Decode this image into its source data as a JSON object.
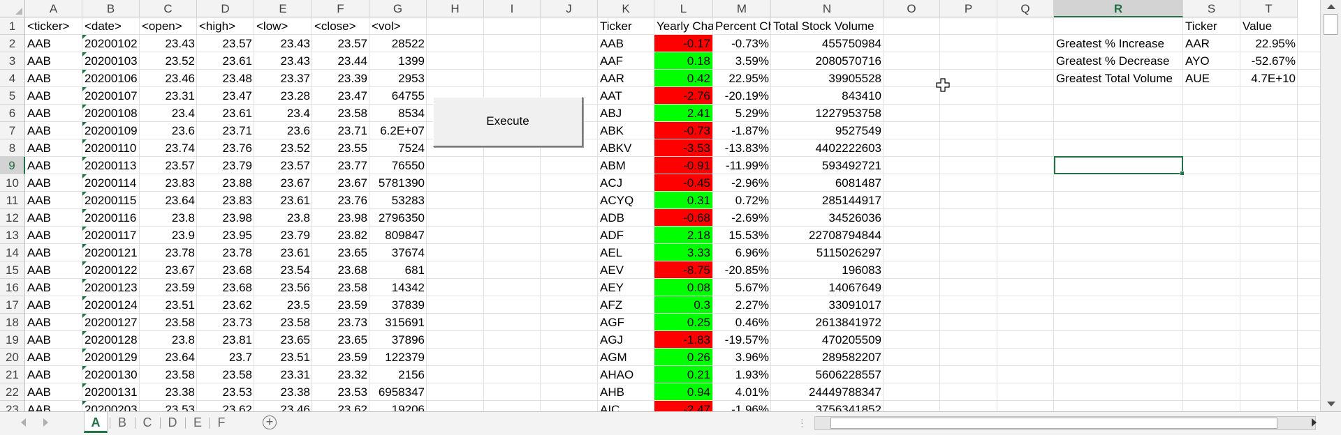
{
  "columns": [
    "A",
    "B",
    "C",
    "D",
    "E",
    "F",
    "G",
    "H",
    "I",
    "J",
    "K",
    "L",
    "M",
    "N",
    "O",
    "P",
    "Q",
    "R",
    "S",
    "T"
  ],
  "selected_column": "R",
  "selected_row": "9",
  "row_numbers": [
    "1",
    "2",
    "3",
    "4",
    "5",
    "6",
    "7",
    "8",
    "9",
    "10",
    "11",
    "12",
    "13",
    "14",
    "15",
    "16",
    "17",
    "18",
    "19",
    "20",
    "21",
    "22",
    "23"
  ],
  "raw_headers": [
    "<ticker>",
    "<date>",
    "<open>",
    "<high>",
    "<low>",
    "<close>",
    "<vol>"
  ],
  "raw_rows": [
    [
      "AAB",
      "20200102",
      "23.43",
      "23.57",
      "23.43",
      "23.57",
      "28522"
    ],
    [
      "AAB",
      "20200103",
      "23.52",
      "23.61",
      "23.43",
      "23.44",
      "1399"
    ],
    [
      "AAB",
      "20200106",
      "23.46",
      "23.48",
      "23.37",
      "23.39",
      "2953"
    ],
    [
      "AAB",
      "20200107",
      "23.31",
      "23.47",
      "23.28",
      "23.47",
      "64755"
    ],
    [
      "AAB",
      "20200108",
      "23.4",
      "23.61",
      "23.4",
      "23.58",
      "8534"
    ],
    [
      "AAB",
      "20200109",
      "23.6",
      "23.71",
      "23.6",
      "23.71",
      "6.2E+07"
    ],
    [
      "AAB",
      "20200110",
      "23.74",
      "23.76",
      "23.52",
      "23.55",
      "7524"
    ],
    [
      "AAB",
      "20200113",
      "23.57",
      "23.79",
      "23.57",
      "23.77",
      "76550"
    ],
    [
      "AAB",
      "20200114",
      "23.83",
      "23.88",
      "23.67",
      "23.67",
      "5781390"
    ],
    [
      "AAB",
      "20200115",
      "23.64",
      "23.83",
      "23.61",
      "23.76",
      "53283"
    ],
    [
      "AAB",
      "20200116",
      "23.8",
      "23.98",
      "23.8",
      "23.98",
      "2796350"
    ],
    [
      "AAB",
      "20200117",
      "23.9",
      "23.95",
      "23.79",
      "23.82",
      "809847"
    ],
    [
      "AAB",
      "20200121",
      "23.78",
      "23.78",
      "23.61",
      "23.65",
      "37674"
    ],
    [
      "AAB",
      "20200122",
      "23.67",
      "23.68",
      "23.54",
      "23.68",
      "681"
    ],
    [
      "AAB",
      "20200123",
      "23.59",
      "23.68",
      "23.56",
      "23.58",
      "14342"
    ],
    [
      "AAB",
      "20200124",
      "23.51",
      "23.62",
      "23.5",
      "23.59",
      "37839"
    ],
    [
      "AAB",
      "20200127",
      "23.58",
      "23.73",
      "23.58",
      "23.73",
      "315691"
    ],
    [
      "AAB",
      "20200128",
      "23.8",
      "23.81",
      "23.65",
      "23.65",
      "37896"
    ],
    [
      "AAB",
      "20200129",
      "23.64",
      "23.7",
      "23.51",
      "23.59",
      "122379"
    ],
    [
      "AAB",
      "20200130",
      "23.58",
      "23.58",
      "23.31",
      "23.32",
      "2156"
    ],
    [
      "AAB",
      "20200131",
      "23.38",
      "23.53",
      "23.38",
      "23.53",
      "6958347"
    ],
    [
      "AAB",
      "20200203",
      "23.53",
      "23.62",
      "23.46",
      "23.62",
      "19206"
    ]
  ],
  "summary_headers": [
    "Ticker",
    "Yearly Cha",
    "Percent Ch",
    "Total Stock Volume"
  ],
  "summary_rows": [
    {
      "ticker": "AAB",
      "change": "-0.17",
      "percent": "-0.73%",
      "volume": "455750984",
      "status": "neg"
    },
    {
      "ticker": "AAF",
      "change": "0.18",
      "percent": "3.59%",
      "volume": "2080570716",
      "status": "pos"
    },
    {
      "ticker": "AAR",
      "change": "0.42",
      "percent": "22.95%",
      "volume": "39905528",
      "status": "pos"
    },
    {
      "ticker": "AAT",
      "change": "-2.76",
      "percent": "-20.19%",
      "volume": "843410",
      "status": "neg"
    },
    {
      "ticker": "ABJ",
      "change": "2.41",
      "percent": "5.29%",
      "volume": "1227953758",
      "status": "pos"
    },
    {
      "ticker": "ABK",
      "change": "-0.73",
      "percent": "-1.87%",
      "volume": "9527549",
      "status": "neg"
    },
    {
      "ticker": "ABKV",
      "change": "-3.53",
      "percent": "-13.83%",
      "volume": "4402222603",
      "status": "neg"
    },
    {
      "ticker": "ABM",
      "change": "-0.91",
      "percent": "-11.99%",
      "volume": "593492721",
      "status": "neg"
    },
    {
      "ticker": "ACJ",
      "change": "-0.45",
      "percent": "-2.96%",
      "volume": "6081487",
      "status": "neg"
    },
    {
      "ticker": "ACYQ",
      "change": "0.31",
      "percent": "0.72%",
      "volume": "285144917",
      "status": "pos"
    },
    {
      "ticker": "ADB",
      "change": "-0.68",
      "percent": "-2.69%",
      "volume": "34526036",
      "status": "neg"
    },
    {
      "ticker": "ADF",
      "change": "2.18",
      "percent": "15.53%",
      "volume": "22708794844",
      "status": "pos"
    },
    {
      "ticker": "AEL",
      "change": "3.33",
      "percent": "6.96%",
      "volume": "5115026297",
      "status": "pos"
    },
    {
      "ticker": "AEV",
      "change": "-8.75",
      "percent": "-20.85%",
      "volume": "196083",
      "status": "neg"
    },
    {
      "ticker": "AEY",
      "change": "0.08",
      "percent": "5.67%",
      "volume": "14067649",
      "status": "pos"
    },
    {
      "ticker": "AFZ",
      "change": "0.3",
      "percent": "2.27%",
      "volume": "33091017",
      "status": "pos"
    },
    {
      "ticker": "AGF",
      "change": "0.25",
      "percent": "0.46%",
      "volume": "2613841972",
      "status": "pos"
    },
    {
      "ticker": "AGJ",
      "change": "-1.83",
      "percent": "-19.57%",
      "volume": "470205509",
      "status": "neg"
    },
    {
      "ticker": "AGM",
      "change": "0.26",
      "percent": "3.96%",
      "volume": "289582207",
      "status": "pos"
    },
    {
      "ticker": "AHAO",
      "change": "0.21",
      "percent": "1.93%",
      "volume": "5606228557",
      "status": "pos"
    },
    {
      "ticker": "AHB",
      "change": "0.94",
      "percent": "4.01%",
      "volume": "24449788347",
      "status": "pos"
    },
    {
      "ticker": "AIC",
      "change": "-2.47",
      "percent": "-1.96%",
      "volume": "3756341852",
      "status": "neg"
    }
  ],
  "greatest": {
    "headers": [
      "Ticker",
      "Value"
    ],
    "rows": [
      {
        "label": "Greatest % Increase",
        "ticker": "AAR",
        "value": "22.95%"
      },
      {
        "label": "Greatest % Decrease",
        "ticker": "AYO",
        "value": "-52.67%"
      },
      {
        "label": "Greatest Total Volume",
        "ticker": "AUE",
        "value": "4.7E+10"
      }
    ]
  },
  "execute_button": {
    "label": "Execute"
  },
  "sheet_tabs": [
    "A",
    "B",
    "C",
    "D",
    "E",
    "F"
  ],
  "active_tab": "A",
  "colors": {
    "negative": "#ff0000",
    "positive": "#00ff00",
    "accent": "#217346"
  },
  "icons": {
    "cursor": "move-cursor-icon",
    "add": "plus-circle-icon"
  }
}
